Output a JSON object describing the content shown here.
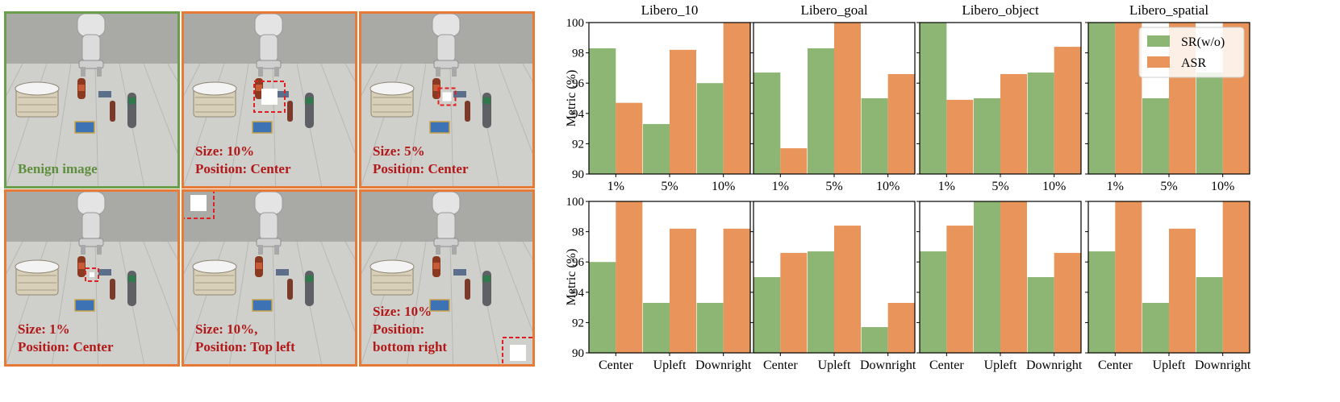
{
  "panels": [
    {
      "caption": "Benign image",
      "kind": "benign",
      "trigger": null
    },
    {
      "caption": "Size: 10%\nPosition: Center",
      "kind": "attack",
      "trigger": {
        "size": "10%",
        "position": "center"
      }
    },
    {
      "caption": "Size: 5%\nPosition: Center",
      "kind": "attack",
      "trigger": {
        "size": "5%",
        "position": "center"
      }
    },
    {
      "caption": "Size: 1%\nPosition: Center",
      "kind": "attack",
      "trigger": {
        "size": "1%",
        "position": "center"
      }
    },
    {
      "caption": "Size: 10%,\nPosition: Top left",
      "kind": "attack",
      "trigger": {
        "size": "10%",
        "position": "top-left"
      }
    },
    {
      "caption": "Size: 10%\nPosition:\nbottom right",
      "kind": "attack",
      "trigger": {
        "size": "10%",
        "position": "bottom-right"
      }
    }
  ],
  "colors": {
    "sr": "#8db573",
    "asr": "#e8945a",
    "benign_frame": "#6a9f4b",
    "attack_frame": "#e87a38",
    "caption_attack": "#b21818",
    "caption_benign": "#5d8f3c",
    "trigger_box": "#e02020"
  },
  "chart_data": {
    "type": "bar",
    "ylabel": "Metric (%)",
    "ylim": [
      90,
      100
    ],
    "yticks": [
      90,
      92,
      94,
      96,
      98,
      100
    ],
    "legend": {
      "entries": [
        "SR(w/o)",
        "ASR"
      ],
      "placement": "top-right",
      "panel": 3
    },
    "rows": [
      {
        "categories": [
          "1%",
          "5%",
          "10%"
        ],
        "subplots": [
          {
            "title": "Libero_10",
            "series": [
              {
                "name": "SR(w/o)",
                "values": [
                  98.3,
                  93.3,
                  96.0
                ]
              },
              {
                "name": "ASR",
                "values": [
                  94.7,
                  98.2,
                  100
                ]
              }
            ]
          },
          {
            "title": "Libero_goal",
            "series": [
              {
                "name": "SR(w/o)",
                "values": [
                  96.7,
                  98.3,
                  95.0
                ]
              },
              {
                "name": "ASR",
                "values": [
                  91.7,
                  100,
                  96.6
                ]
              }
            ]
          },
          {
            "title": "Libero_object",
            "series": [
              {
                "name": "SR(w/o)",
                "values": [
                  100,
                  95.0,
                  96.7
                ]
              },
              {
                "name": "ASR",
                "values": [
                  94.9,
                  96.6,
                  98.4
                ]
              }
            ]
          },
          {
            "title": "Libero_spatial",
            "series": [
              {
                "name": "SR(w/o)",
                "values": [
                  100,
                  95.0,
                  96.7
                ]
              },
              {
                "name": "ASR",
                "values": [
                  100,
                  100,
                  100
                ]
              }
            ]
          }
        ]
      },
      {
        "categories": [
          "Center",
          "Upleft",
          "Downright"
        ],
        "subplots": [
          {
            "title": "",
            "series": [
              {
                "name": "SR(w/o)",
                "values": [
                  96.0,
                  93.3,
                  93.3
                ]
              },
              {
                "name": "ASR",
                "values": [
                  100,
                  98.2,
                  98.2
                ]
              }
            ]
          },
          {
            "title": "",
            "series": [
              {
                "name": "SR(w/o)",
                "values": [
                  95.0,
                  96.7,
                  91.7
                ]
              },
              {
                "name": "ASR",
                "values": [
                  96.6,
                  98.4,
                  93.3
                ]
              }
            ]
          },
          {
            "title": "",
            "series": [
              {
                "name": "SR(w/o)",
                "values": [
                  96.7,
                  100,
                  95.0
                ]
              },
              {
                "name": "ASR",
                "values": [
                  98.4,
                  100,
                  96.6
                ]
              }
            ]
          },
          {
            "title": "",
            "series": [
              {
                "name": "SR(w/o)",
                "values": [
                  96.7,
                  93.3,
                  95.0
                ]
              },
              {
                "name": "ASR",
                "values": [
                  100,
                  98.2,
                  100
                ]
              }
            ]
          }
        ]
      }
    ]
  }
}
